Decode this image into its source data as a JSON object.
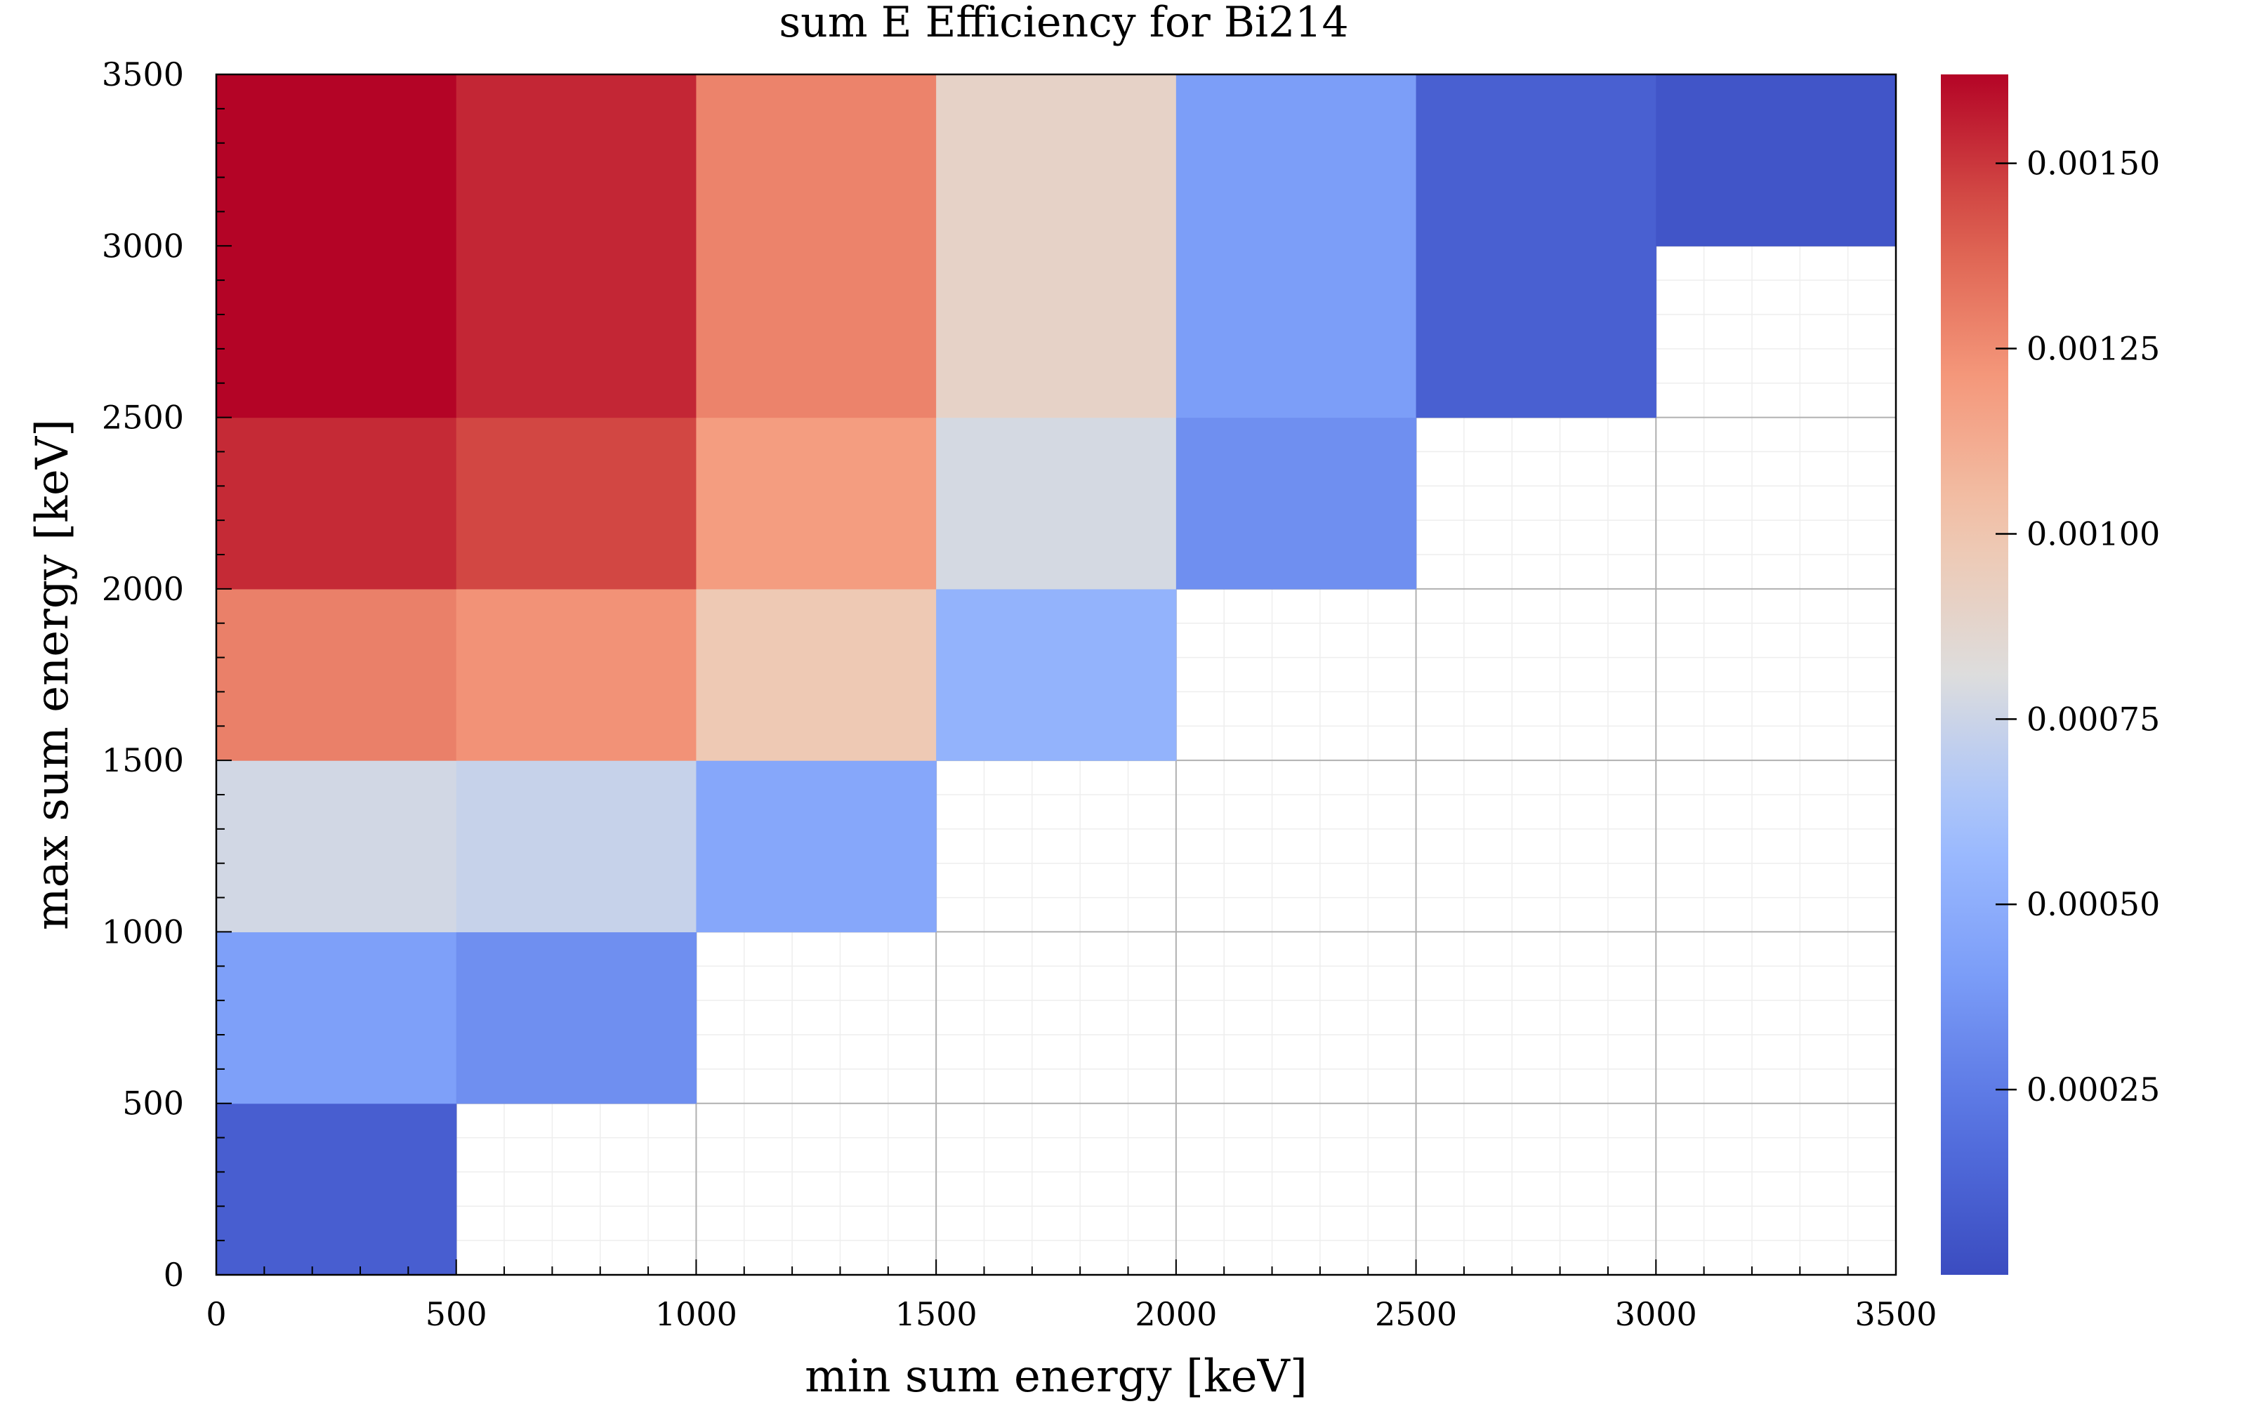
{
  "chart_data": {
    "type": "heatmap",
    "title": "sum E Efficiency for Bi214",
    "xlabel": "min sum energy [keV]",
    "ylabel": "max sum energy [keV]",
    "xlim": [
      0,
      3500
    ],
    "ylim": [
      0,
      3500
    ],
    "x_bin_edges": [
      0,
      500,
      1000,
      1500,
      2000,
      2500,
      3000,
      3500
    ],
    "y_bin_edges": [
      0,
      500,
      1000,
      1500,
      2000,
      2500,
      3000,
      3500
    ],
    "x_ticks": [
      0,
      500,
      1000,
      1500,
      2000,
      2500,
      3000,
      3500
    ],
    "y_ticks": [
      0,
      500,
      1000,
      1500,
      2000,
      2500,
      3000,
      3500
    ],
    "x_tick_labels": [
      "0",
      "500",
      "1000",
      "1500",
      "2000",
      "2500",
      "3000",
      "3500"
    ],
    "y_tick_labels": [
      "0",
      "500",
      "1000",
      "1500",
      "2000",
      "2500",
      "3000",
      "3500"
    ],
    "colorbar": {
      "colormap": "coolwarm",
      "range": [
        0.0,
        0.00162
      ],
      "ticks": [
        0.00025,
        0.0005,
        0.00075,
        0.001,
        0.00125,
        0.0015
      ],
      "tick_labels": [
        "0.00025",
        "0.00050",
        "0.00075",
        "0.00100",
        "0.00125",
        "0.00150"
      ],
      "position": "right"
    },
    "grid": true,
    "cells": [
      {
        "x": [
          0,
          500
        ],
        "y": [
          0,
          500
        ],
        "value": 0.0001
      },
      {
        "x": [
          0,
          500
        ],
        "y": [
          500,
          1000
        ],
        "value": 0.00042
      },
      {
        "x": [
          500,
          1000
        ],
        "y": [
          500,
          1000
        ],
        "value": 0.00034
      },
      {
        "x": [
          0,
          500
        ],
        "y": [
          1000,
          1500
        ],
        "value": 0.00077
      },
      {
        "x": [
          500,
          1000
        ],
        "y": [
          1000,
          1500
        ],
        "value": 0.00073
      },
      {
        "x": [
          1000,
          1500
        ],
        "y": [
          1000,
          1500
        ],
        "value": 0.00046
      },
      {
        "x": [
          0,
          500
        ],
        "y": [
          1500,
          2000
        ],
        "value": 0.00129
      },
      {
        "x": [
          500,
          1000
        ],
        "y": [
          1500,
          2000
        ],
        "value": 0.00123
      },
      {
        "x": [
          1000,
          1500
        ],
        "y": [
          1500,
          2000
        ],
        "value": 0.00098
      },
      {
        "x": [
          1500,
          2000
        ],
        "y": [
          1500,
          2000
        ],
        "value": 0.00053
      },
      {
        "x": [
          0,
          500
        ],
        "y": [
          2000,
          2500
        ],
        "value": 0.00153
      },
      {
        "x": [
          500,
          1000
        ],
        "y": [
          2000,
          2500
        ],
        "value": 0.00146
      },
      {
        "x": [
          1000,
          1500
        ],
        "y": [
          2000,
          2500
        ],
        "value": 0.00119
      },
      {
        "x": [
          1500,
          2000
        ],
        "y": [
          2000,
          2500
        ],
        "value": 0.00078
      },
      {
        "x": [
          2000,
          2500
        ],
        "y": [
          2000,
          2500
        ],
        "value": 0.00034
      },
      {
        "x": [
          0,
          3500
        ],
        "y": [
          2500,
          3000
        ],
        "value": null
      },
      {
        "x": [
          0,
          500
        ],
        "y": [
          2500,
          3500
        ],
        "value": 0.00162
      },
      {
        "x": [
          500,
          1000
        ],
        "y": [
          2500,
          3500
        ],
        "value": 0.00154
      },
      {
        "x": [
          1000,
          1500
        ],
        "y": [
          2500,
          3500
        ],
        "value": 0.00128
      },
      {
        "x": [
          1500,
          2000
        ],
        "y": [
          2500,
          3500
        ],
        "value": 0.0009
      },
      {
        "x": [
          2000,
          2500
        ],
        "y": [
          2500,
          3500
        ],
        "value": 0.00041
      },
      {
        "x": [
          2500,
          3000
        ],
        "y": [
          2500,
          3500
        ],
        "value": 0.00011
      },
      {
        "x": [
          3000,
          3500
        ],
        "y": [
          3000,
          3500
        ],
        "value": 5e-05
      }
    ]
  }
}
